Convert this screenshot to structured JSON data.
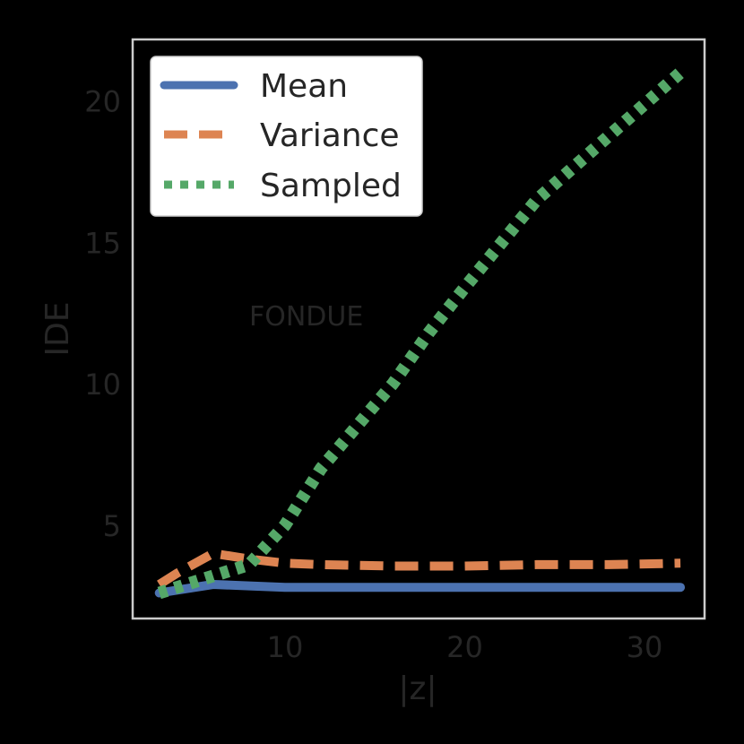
{
  "chart_data": {
    "type": "line",
    "title": "",
    "xlabel": "|z|",
    "ylabel": "IDE",
    "xlim": [
      1.5,
      33.5
    ],
    "ylim": [
      1.7,
      22.2
    ],
    "xticks": [
      10,
      20,
      30
    ],
    "yticks": [
      5,
      10,
      15,
      20
    ],
    "grid": false,
    "legend_position": "upper left",
    "annotations": [
      {
        "text": "FONDUE",
        "x": 8,
        "y": 12.4
      }
    ],
    "series": [
      {
        "name": "Mean",
        "color": "#4c72b0",
        "style": "solid",
        "x": [
          3,
          4,
          6,
          8,
          10,
          12,
          16,
          20,
          24,
          28,
          32
        ],
        "y": [
          2.6,
          2.7,
          2.9,
          2.85,
          2.8,
          2.8,
          2.8,
          2.8,
          2.8,
          2.8,
          2.8
        ]
      },
      {
        "name": "Variance",
        "color": "#dd8452",
        "style": "dashed",
        "x": [
          3,
          4,
          6,
          8,
          10,
          12,
          16,
          20,
          24,
          28,
          32
        ],
        "y": [
          2.9,
          3.3,
          4.0,
          3.8,
          3.65,
          3.6,
          3.55,
          3.55,
          3.6,
          3.6,
          3.65
        ]
      },
      {
        "name": "Sampled",
        "color": "#55a868",
        "style": "dotted",
        "x": [
          3,
          4,
          6,
          8,
          10,
          12,
          16,
          18,
          20,
          24,
          32
        ],
        "y": [
          2.6,
          2.8,
          3.2,
          3.6,
          5.0,
          7.0,
          10.0,
          11.8,
          13.4,
          16.5,
          21.0
        ]
      }
    ]
  },
  "legend": {
    "items": [
      {
        "label": "Mean",
        "color": "#4c72b0"
      },
      {
        "label": "Variance",
        "color": "#dd8452"
      },
      {
        "label": "Sampled",
        "color": "#55a868"
      }
    ]
  },
  "colors": {
    "background": "#000000",
    "frame": "#cccccc",
    "text": "#262626"
  }
}
